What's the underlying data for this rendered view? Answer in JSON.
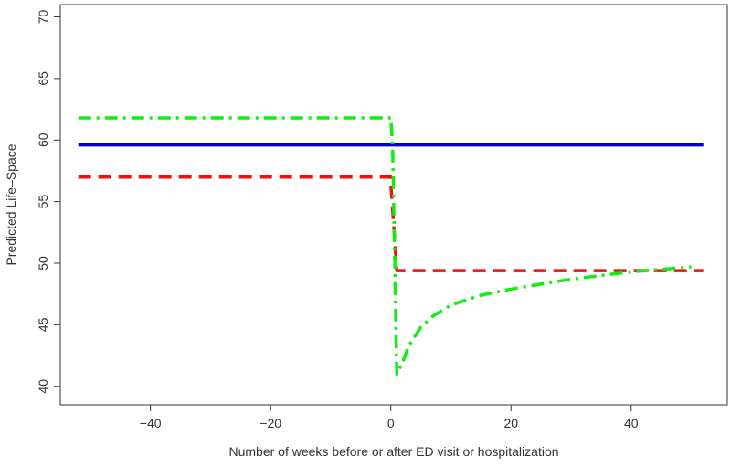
{
  "chart_data": {
    "type": "line",
    "title": "",
    "xlabel": "Number of weeks before or after ED visit or hospitalization",
    "ylabel": "Predicted Life–Space",
    "xlim": [
      -55,
      56
    ],
    "ylim": [
      38.5,
      71
    ],
    "xticks": [
      -40,
      -20,
      0,
      20,
      40
    ],
    "yticks": [
      40,
      45,
      50,
      55,
      60,
      65,
      70
    ],
    "xtick_labels": [
      "−40",
      "−20",
      "0",
      "20",
      "40"
    ],
    "ytick_labels": [
      "40",
      "45",
      "50",
      "55",
      "60",
      "65",
      "70"
    ],
    "grid": false,
    "legend": null,
    "series": [
      {
        "color": "#0000cc",
        "style": "solid",
        "x": [
          -52,
          52
        ],
        "y": [
          59.6,
          59.6
        ]
      },
      {
        "color": "#ee1111",
        "style": "dashed",
        "x": [
          -52,
          0,
          0,
          1,
          52
        ],
        "y": [
          57.0,
          57.0,
          56.5,
          49.4,
          49.4
        ]
      },
      {
        "color": "#11ee11",
        "style": "dashdot",
        "x": [
          -52,
          0,
          0.3,
          1,
          2,
          3,
          5,
          7,
          10,
          15,
          20,
          25,
          30,
          35,
          40,
          45,
          50
        ],
        "y": [
          61.8,
          61.8,
          59.5,
          41.0,
          42.0,
          43.3,
          44.8,
          45.7,
          46.6,
          47.4,
          47.9,
          48.3,
          48.7,
          49.0,
          49.3,
          49.5,
          49.7
        ]
      }
    ]
  }
}
